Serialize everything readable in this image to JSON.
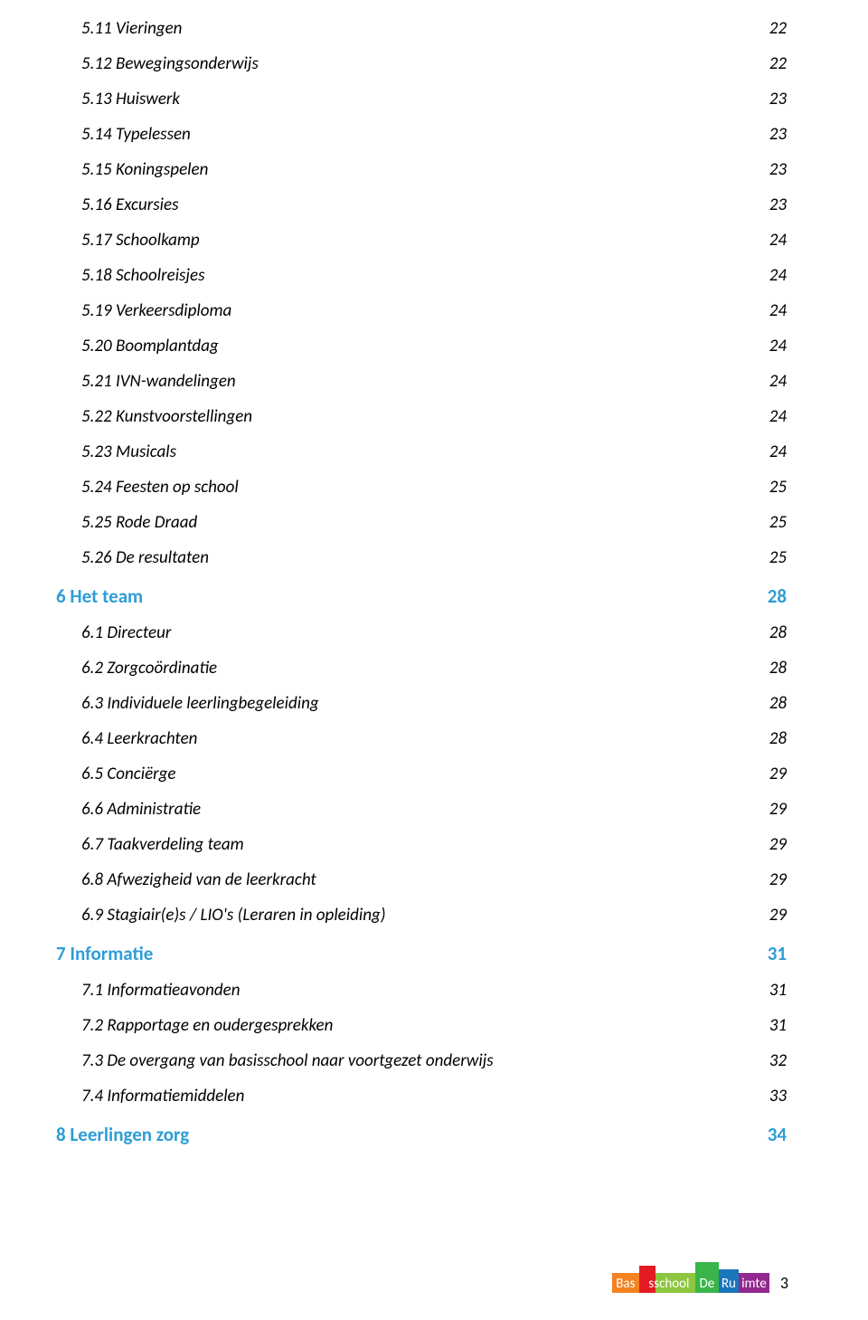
{
  "colors": {
    "heading": "#2e9dd6",
    "text": "#000000",
    "logo_orange": "#f58220",
    "logo_red": "#e31b23",
    "logo_green": "#8dc63f",
    "logo_dkgreen": "#39b54a",
    "logo_blue": "#1b75bb",
    "logo_purple": "#92278f"
  },
  "sections": [
    {
      "items": [
        {
          "label": "5.11 Vieringen",
          "page": "22"
        },
        {
          "label": "5.12 Bewegingsonderwijs",
          "page": "22"
        },
        {
          "label": "5.13 Huiswerk",
          "page": "23"
        },
        {
          "label": "5.14 Typelessen",
          "page": "23"
        },
        {
          "label": "5.15 Koningspelen",
          "page": "23"
        },
        {
          "label": "5.16 Excursies",
          "page": "23"
        },
        {
          "label": "5.17 Schoolkamp",
          "page": "24"
        },
        {
          "label": "5.18 Schoolreisjes",
          "page": "24"
        },
        {
          "label": "5.19 Verkeersdiploma",
          "page": "24"
        },
        {
          "label": "5.20 Boomplantdag",
          "page": "24"
        },
        {
          "label": "5.21 IVN-wandelingen",
          "page": "24"
        },
        {
          "label": "5.22 Kunstvoorstellingen",
          "page": "24"
        },
        {
          "label": "5.23 Musicals",
          "page": "24"
        },
        {
          "label": "5.24 Feesten op school",
          "page": "25"
        },
        {
          "label": "5.25 Rode Draad",
          "page": "25"
        },
        {
          "label": "5.26 De resultaten",
          "page": "25"
        }
      ]
    },
    {
      "heading": {
        "label": "6  Het team",
        "page": "28"
      },
      "items": [
        {
          "label": "6.1 Directeur",
          "page": "28"
        },
        {
          "label": "6.2 Zorgcoördinatie",
          "page": "28"
        },
        {
          "label": "6.3 Individuele leerlingbegeleiding",
          "page": "28"
        },
        {
          "label": "6.4  Leerkrachten",
          "page": "28"
        },
        {
          "label": "6.5 Conciërge",
          "page": "29"
        },
        {
          "label": "6.6 Administratie",
          "page": "29"
        },
        {
          "label": "6.7 Taakverdeling team",
          "page": "29"
        },
        {
          "label": "6.8 Afwezigheid van de leerkracht",
          "page": "29"
        },
        {
          "label": "6.9 Stagiair(e)s / LIO's (Leraren in opleiding)",
          "page": "29"
        }
      ]
    },
    {
      "heading": {
        "label": "7  Informatie",
        "page": "31"
      },
      "items": [
        {
          "label": "7.1 Informatieavonden",
          "page": "31"
        },
        {
          "label": "7.2 Rapportage en oudergesprekken",
          "page": "31"
        },
        {
          "label": "7.3 De overgang van basisschool naar voortgezet onderwijs",
          "page": "32"
        },
        {
          "label": "7.4 Informatiemiddelen",
          "page": "33"
        }
      ]
    },
    {
      "heading": {
        "label": "8  Leerlingen zorg",
        "page": "34"
      },
      "items": []
    }
  ],
  "footer": {
    "logo_text_1": "Basisschool",
    "logo_text_2": "De Ruimte",
    "page_number": "3"
  }
}
